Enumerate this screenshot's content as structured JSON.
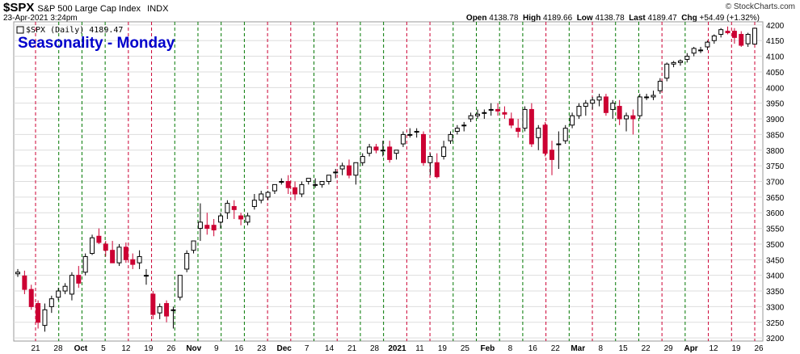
{
  "header": {
    "symbol": "$SPX",
    "name": "S&P 500 Large Cap Index",
    "exchange": "INDX",
    "date": "23-Apr-2021 3:24pm",
    "open_label": "Open",
    "open": "4138.78",
    "high_label": "High",
    "high": "4189.66",
    "low_label": "Low",
    "low": "4138.78",
    "last_label": "Last",
    "last": "4189.47",
    "chg_label": "Chg",
    "chg": "+54.49 (+1.32%)",
    "watermark": "© StockCharts.com"
  },
  "chart_data": {
    "type": "candlestick",
    "title": "Seasonality - Monday",
    "legend": "$SPX (Daily) 4189.47",
    "ylim": [
      3190,
      4210
    ],
    "yticks": [
      3200,
      3250,
      3300,
      3350,
      3400,
      3450,
      3500,
      3550,
      3600,
      3650,
      3700,
      3750,
      3800,
      3850,
      3900,
      3950,
      4000,
      4050,
      4100,
      4150,
      4200
    ],
    "xticks": [
      "21",
      "28",
      "Oct",
      "5",
      "12",
      "19",
      "26",
      "Nov",
      "9",
      "16",
      "23",
      "Dec",
      "7",
      "14",
      "21",
      "28",
      "2021",
      "11",
      "19",
      "25",
      "Feb",
      "8",
      "16",
      "22",
      "Mar",
      "8",
      "15",
      "22",
      "29",
      "Apr",
      "12",
      "19",
      "26"
    ],
    "bold_xticks": [
      "Oct",
      "Nov",
      "Dec",
      "2021",
      "Feb",
      "Mar",
      "Apr"
    ],
    "colors": {
      "up": "#000000",
      "down": "#cc0033",
      "green_line": "#007700",
      "red_line": "#cc0033",
      "title": "#0000cc",
      "grid": "#dddddd"
    },
    "candles": [
      [
        3405,
        3420,
        3395,
        3410
      ],
      [
        3398,
        3415,
        3340,
        3355
      ],
      [
        3355,
        3370,
        3290,
        3300
      ],
      [
        3310,
        3320,
        3230,
        3250
      ],
      [
        3240,
        3310,
        3220,
        3290
      ],
      [
        3300,
        3335,
        3280,
        3325
      ],
      [
        3330,
        3360,
        3320,
        3350
      ],
      [
        3350,
        3375,
        3340,
        3365
      ],
      [
        3340,
        3410,
        3320,
        3400
      ],
      [
        3400,
        3430,
        3360,
        3375
      ],
      [
        3410,
        3470,
        3400,
        3460
      ],
      [
        3470,
        3530,
        3465,
        3520
      ],
      [
        3525,
        3550,
        3500,
        3505
      ],
      [
        3500,
        3510,
        3460,
        3480
      ],
      [
        3480,
        3510,
        3440,
        3440
      ],
      [
        3440,
        3500,
        3430,
        3490
      ],
      [
        3490,
        3505,
        3440,
        3450
      ],
      [
        3450,
        3470,
        3420,
        3435
      ],
      [
        3440,
        3480,
        3420,
        3460
      ],
      [
        3400,
        3420,
        3370,
        3400
      ],
      [
        3340,
        3350,
        3260,
        3275
      ],
      [
        3280,
        3310,
        3260,
        3300
      ],
      [
        3310,
        3320,
        3250,
        3270
      ],
      [
        3290,
        3300,
        3230,
        3290
      ],
      [
        3330,
        3400,
        3320,
        3400
      ],
      [
        3420,
        3480,
        3410,
        3470
      ],
      [
        3480,
        3510,
        3470,
        3510
      ],
      [
        3550,
        3630,
        3510,
        3570
      ],
      [
        3560,
        3600,
        3530,
        3550
      ],
      [
        3560,
        3580,
        3525,
        3545
      ],
      [
        3570,
        3600,
        3550,
        3590
      ],
      [
        3600,
        3640,
        3580,
        3630
      ],
      [
        3620,
        3640,
        3580,
        3610
      ],
      [
        3590,
        3600,
        3560,
        3580
      ],
      [
        3570,
        3600,
        3560,
        3590
      ],
      [
        3620,
        3660,
        3610,
        3640
      ],
      [
        3640,
        3670,
        3630,
        3660
      ],
      [
        3650,
        3670,
        3640,
        3665
      ],
      [
        3670,
        3690,
        3660,
        3690
      ],
      [
        3700,
        3710,
        3690,
        3700
      ],
      [
        3700,
        3720,
        3660,
        3680
      ],
      [
        3680,
        3700,
        3640,
        3660
      ],
      [
        3660,
        3700,
        3650,
        3690
      ],
      [
        3700,
        3710,
        3690,
        3710
      ],
      [
        3690,
        3710,
        3680,
        3690
      ],
      [
        3690,
        3700,
        3680,
        3700
      ],
      [
        3700,
        3720,
        3690,
        3720
      ],
      [
        3730,
        3740,
        3710,
        3730
      ],
      [
        3740,
        3760,
        3720,
        3750
      ],
      [
        3750,
        3770,
        3710,
        3720
      ],
      [
        3720,
        3760,
        3690,
        3760
      ],
      [
        3760,
        3790,
        3750,
        3780
      ],
      [
        3790,
        3820,
        3780,
        3810
      ],
      [
        3810,
        3820,
        3790,
        3800
      ],
      [
        3800,
        3830,
        3780,
        3800
      ],
      [
        3810,
        3830,
        3760,
        3770
      ],
      [
        3790,
        3800,
        3770,
        3800
      ],
      [
        3820,
        3860,
        3810,
        3850
      ],
      [
        3850,
        3870,
        3840,
        3850
      ],
      [
        3860,
        3870,
        3840,
        3860
      ],
      [
        3850,
        3860,
        3750,
        3760
      ],
      [
        3760,
        3790,
        3720,
        3780
      ],
      [
        3760,
        3790,
        3710,
        3715
      ],
      [
        3780,
        3830,
        3770,
        3810
      ],
      [
        3830,
        3860,
        3820,
        3850
      ],
      [
        3860,
        3880,
        3850,
        3870
      ],
      [
        3880,
        3890,
        3860,
        3880
      ],
      [
        3900,
        3920,
        3890,
        3910
      ],
      [
        3910,
        3930,
        3900,
        3915
      ],
      [
        3920,
        3930,
        3900,
        3920
      ],
      [
        3930,
        3950,
        3910,
        3930
      ],
      [
        3930,
        3950,
        3910,
        3925
      ],
      [
        3920,
        3940,
        3900,
        3915
      ],
      [
        3900,
        3920,
        3870,
        3880
      ],
      [
        3870,
        3900,
        3840,
        3860
      ],
      [
        3870,
        3940,
        3860,
        3930
      ],
      [
        3930,
        3950,
        3810,
        3820
      ],
      [
        3840,
        3880,
        3800,
        3870
      ],
      [
        3880,
        3890,
        3780,
        3790
      ],
      [
        3800,
        3830,
        3720,
        3770
      ],
      [
        3820,
        3860,
        3740,
        3820
      ],
      [
        3830,
        3880,
        3820,
        3870
      ],
      [
        3880,
        3920,
        3870,
        3910
      ],
      [
        3910,
        3950,
        3900,
        3940
      ],
      [
        3940,
        3960,
        3910,
        3950
      ],
      [
        3950,
        3970,
        3930,
        3960
      ],
      [
        3960,
        3980,
        3940,
        3970
      ],
      [
        3970,
        3980,
        3910,
        3920
      ],
      [
        3930,
        3960,
        3900,
        3950
      ],
      [
        3940,
        3960,
        3880,
        3900
      ],
      [
        3900,
        3920,
        3860,
        3910
      ],
      [
        3910,
        3930,
        3850,
        3900
      ],
      [
        3910,
        3980,
        3900,
        3970
      ],
      [
        3970,
        3980,
        3960,
        3970
      ],
      [
        3970,
        3990,
        3960,
        3975
      ],
      [
        3990,
        4030,
        3980,
        4020
      ],
      [
        4030,
        4080,
        4020,
        4075
      ],
      [
        4075,
        4085,
        4065,
        4080
      ],
      [
        4080,
        4090,
        4070,
        4085
      ],
      [
        4090,
        4110,
        4080,
        4100
      ],
      [
        4110,
        4130,
        4100,
        4125
      ],
      [
        4120,
        4130,
        4110,
        4120
      ],
      [
        4130,
        4150,
        4120,
        4145
      ],
      [
        4150,
        4170,
        4140,
        4165
      ],
      [
        4170,
        4190,
        4160,
        4185
      ],
      [
        4180,
        4195,
        4170,
        4175
      ],
      [
        4180,
        4190,
        4140,
        4160
      ],
      [
        4170,
        4180,
        4130,
        4135
      ],
      [
        4140,
        4175,
        4130,
        4170
      ],
      [
        4138.78,
        4189.66,
        4138.78,
        4189.47
      ]
    ],
    "monday_lines": [
      {
        "day": "21",
        "color": "red"
      },
      {
        "day": "28",
        "color": "green"
      },
      {
        "day": "5",
        "color": "green"
      },
      {
        "day": "12",
        "color": "green"
      },
      {
        "day": "19",
        "color": "red"
      },
      {
        "day": "26",
        "color": "red"
      },
      {
        "day": "2",
        "color": "green"
      },
      {
        "day": "9",
        "color": "green"
      },
      {
        "day": "16",
        "color": "green"
      },
      {
        "day": "23",
        "color": "green"
      },
      {
        "day": "30",
        "color": "red"
      },
      {
        "day": "7",
        "color": "red"
      },
      {
        "day": "14",
        "color": "green"
      },
      {
        "day": "21",
        "color": "red"
      },
      {
        "day": "28",
        "color": "green"
      },
      {
        "day": "4",
        "color": "green"
      },
      {
        "day": "11",
        "color": "red"
      },
      {
        "day": "18",
        "color": "red"
      },
      {
        "day": "25",
        "color": "green"
      },
      {
        "day": "1",
        "color": "green"
      },
      {
        "day": "8",
        "color": "green"
      },
      {
        "day": "15",
        "color": "green"
      },
      {
        "day": "22",
        "color": "red"
      },
      {
        "day": "1",
        "color": "green"
      },
      {
        "day": "8",
        "color": "red"
      },
      {
        "day": "15",
        "color": "green"
      },
      {
        "day": "22",
        "color": "green"
      },
      {
        "day": "29",
        "color": "red"
      },
      {
        "day": "5",
        "color": "green"
      },
      {
        "day": "12",
        "color": "red"
      },
      {
        "day": "19",
        "color": "red"
      },
      {
        "day": "26",
        "color": "red"
      }
    ]
  }
}
